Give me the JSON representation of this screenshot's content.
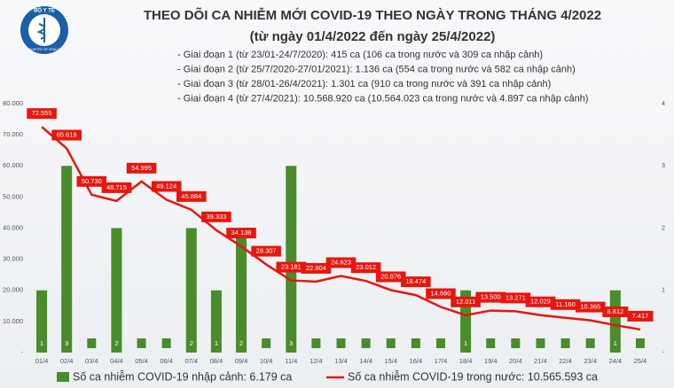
{
  "logo": {
    "name": "BỘ Y TẾ",
    "sub": "MINISTRY OF HEALTH"
  },
  "chart_data": {
    "type": "combo",
    "title": "THEO DÕI CA NHIỄM MỚI COVID-19 THEO NGÀY TRONG THÁNG 4/2022",
    "subtitle": "(từ ngày 01/4/2022 đến ngày 25/4/2022)",
    "notes": [
      "- Giai đoạn 1 (từ 23/01-24/7/2020): 415 ca (106 ca trong nước và 309 ca nhập cảnh)",
      "- Giai đoạn 2 (từ 25/7/2020-27/01/2021): 1.136 ca (554 ca trong nước và 582 ca nhập cảnh)",
      "- Giai đoạn 3 (từ 28/01-26/4/2021): 1.301 ca (910 ca trong nước và 391 ca nhập cảnh)",
      "- Giai đoạn 4 (từ 27/4/2021): 10.568.920 ca (10.564.023 ca trong nước và 4.897 ca nhập cảnh)"
    ],
    "categories": [
      "01/4",
      "02/4",
      "03/4",
      "04/4",
      "05/4",
      "06/4",
      "07/4",
      "08/4",
      "09/4",
      "10/4",
      "11/4",
      "12/4",
      "13/4",
      "14/4",
      "15/4",
      "16/4",
      "17/4",
      "18/4",
      "19/4",
      "20/4",
      "21/4",
      "22/4",
      "23/4",
      "24/4",
      "25/4"
    ],
    "series": [
      {
        "name": "Số ca nhiễm COVID-19 nhập cảnh: 6.179 ca",
        "type": "bar",
        "axis": "y2",
        "color": "#4a8b2c",
        "values": [
          1,
          3,
          0,
          2,
          0,
          0,
          2,
          1,
          2,
          0,
          3,
          0,
          0,
          0,
          0,
          0,
          0,
          1,
          0,
          0,
          0,
          0,
          0,
          1,
          0
        ]
      },
      {
        "name": "Số ca nhiễm COVID-19 trong nước: 10.565.593 ca",
        "type": "line",
        "color": "#e5170e",
        "values": [
          72555,
          65616,
          50730,
          48715,
          54995,
          49124,
          45884,
          39333,
          34138,
          28307,
          23181,
          22804,
          24623,
          23012,
          20076,
          18474,
          14660,
          12011,
          13500,
          13271,
          12029,
          11160,
          10365,
          8812,
          7417
        ],
        "value_labels": [
          "72.555",
          "65.616",
          "50.730",
          "48.715",
          "54.995",
          "49.124",
          "45.884",
          "39.333",
          "34.138",
          "28.307",
          "23.181",
          "22.804",
          "24.623",
          "23.012",
          "20.076",
          "18.474",
          "14.660",
          "12.011",
          "13.500",
          "13.271",
          "12.029",
          "11.160",
          "10.365",
          "8.812",
          "7.417"
        ]
      }
    ],
    "ylim": [
      0,
      80000
    ],
    "yticks": [
      {
        "value": 0,
        "label": "-"
      },
      {
        "value": 10000,
        "label": "10.000"
      },
      {
        "value": 20000,
        "label": "20.000"
      },
      {
        "value": 30000,
        "label": "30.000"
      },
      {
        "value": 40000,
        "label": "40.000"
      },
      {
        "value": 50000,
        "label": "50.000"
      },
      {
        "value": 60000,
        "label": "60.000"
      },
      {
        "value": 70000,
        "label": "70.000"
      },
      {
        "value": 80000,
        "label": "80.000"
      }
    ],
    "y2lim": [
      0,
      4
    ],
    "y2ticks": [
      {
        "value": 0,
        "label": "-"
      },
      1,
      2,
      3,
      4
    ]
  }
}
